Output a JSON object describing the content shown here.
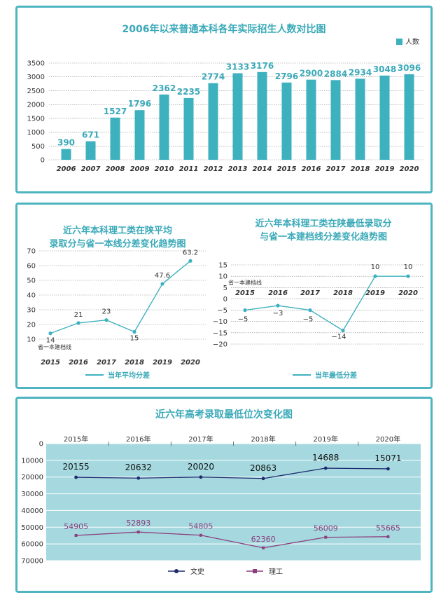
{
  "chart_data": [
    {
      "type": "bar",
      "title": "2006年以来普通本科各年实际招生人数对比图",
      "legend": "人数",
      "legend_position": "top-right",
      "categories": [
        "2006",
        "2007",
        "2008",
        "2009",
        "2010",
        "2011",
        "2012",
        "2013",
        "2014",
        "2015",
        "2016",
        "2017",
        "2018",
        "2019",
        "2020"
      ],
      "values": [
        390,
        671,
        1527,
        1796,
        2362,
        2235,
        2774,
        3133,
        3176,
        2796,
        2900,
        2884,
        2934,
        3048,
        3096
      ],
      "yticks": [
        0,
        500,
        1000,
        1500,
        2000,
        2500,
        3000,
        3500
      ],
      "ylim": [
        0,
        3500
      ],
      "grid": true,
      "color": "#3eb1bf"
    },
    {
      "type": "line",
      "title": [
        "近六年本科理工类在陕平均",
        "录取分与省一本线分差变化趋势图"
      ],
      "legend": "当年平均分差",
      "legend_position": "bottom",
      "baseline_label": "省一本建档线",
      "categories": [
        "2015",
        "2016",
        "2017",
        "2018",
        "2019",
        "2020"
      ],
      "values": [
        14,
        21,
        23,
        15,
        47.6,
        63.2
      ],
      "value_labels": [
        "14",
        "21",
        "23",
        "15",
        "47.6",
        "63.2"
      ],
      "yticks": [
        10,
        20,
        30,
        40,
        50,
        60,
        70
      ],
      "ylim": [
        10,
        70
      ],
      "grid": true,
      "color": "#3eb1bf"
    },
    {
      "type": "line",
      "title": [
        "近六年本科理工类在陕最低录取分",
        "与省一本建档线分差变化趋势图"
      ],
      "legend": "当年最低分差",
      "legend_position": "bottom",
      "baseline_label": "省一本建档线",
      "categories": [
        "2015",
        "2016",
        "2017",
        "2018",
        "2019",
        "2020"
      ],
      "values": [
        -5,
        -3,
        -5,
        -14,
        10,
        10
      ],
      "value_labels": [
        "−5",
        "−3",
        "−5",
        "−14",
        "10",
        "10"
      ],
      "yticks": [
        15,
        10,
        5,
        0,
        -5,
        -10,
        -15,
        -20
      ],
      "ylim": [
        -20,
        15
      ],
      "grid": true,
      "color": "#3eb1bf"
    },
    {
      "type": "line",
      "title": "近六年高考录取最低位次变化图",
      "categories": [
        "2015年",
        "2016年",
        "2017年",
        "2018年",
        "2019年",
        "2020年"
      ],
      "yticks": [
        0,
        10000,
        20000,
        30000,
        40000,
        50000,
        60000,
        70000
      ],
      "ylim": [
        0,
        70000
      ],
      "y_inverted": true,
      "grid": true,
      "series": [
        {
          "name": "文史",
          "values": [
            20155,
            20632,
            20020,
            20863,
            14688,
            15071
          ],
          "color": "#1f2a6e"
        },
        {
          "name": "理工",
          "values": [
            54905,
            52893,
            54805,
            62360,
            56009,
            55665
          ],
          "color": "#8b3f7e"
        }
      ],
      "legend_position": "bottom",
      "plot_background": "#a5d9df"
    }
  ]
}
